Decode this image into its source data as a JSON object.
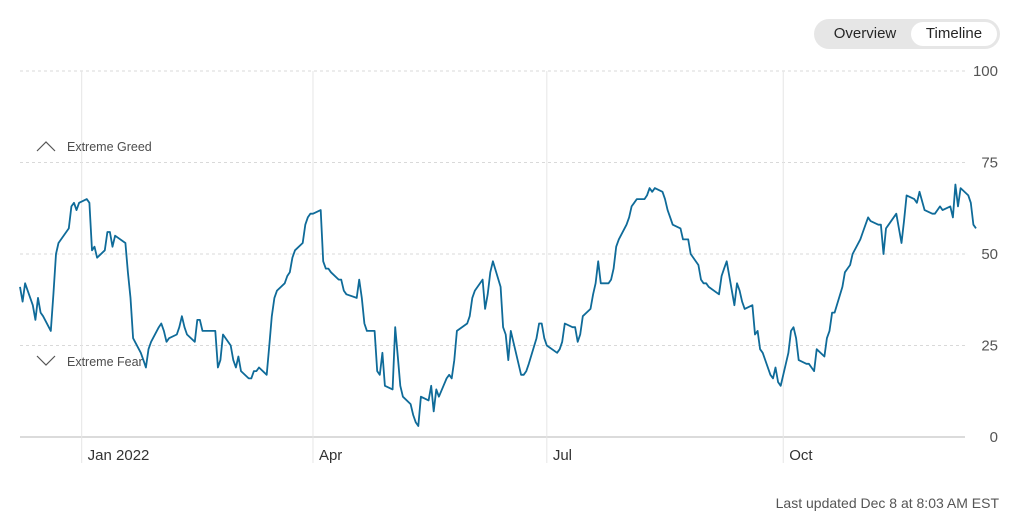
{
  "view_toggle": {
    "options": [
      {
        "label": "Overview",
        "selected": false
      },
      {
        "label": "Timeline",
        "selected": true
      }
    ]
  },
  "footer": {
    "last_updated": "Last updated Dec 8 at 8:03 AM EST"
  },
  "chart_data": {
    "type": "line",
    "title": "",
    "xlabel": "",
    "ylabel": "",
    "ylim": [
      0,
      100
    ],
    "yticks": [
      0,
      25,
      50,
      75,
      100
    ],
    "x_range": [
      "2021-12-08",
      "2022-12-08"
    ],
    "xticks": [
      {
        "label": "Jan 2022",
        "date": "2022-01-01"
      },
      {
        "label": "Apr",
        "date": "2022-04-01"
      },
      {
        "label": "Jul",
        "date": "2022-07-01"
      },
      {
        "label": "Oct",
        "date": "2022-10-01"
      }
    ],
    "annotations": [
      {
        "label": "Extreme Greed",
        "icon": "chevron-up-icon"
      },
      {
        "label": "Extreme Fear",
        "icon": "chevron-down-icon"
      }
    ],
    "grid": true,
    "line_color": "#0f6b99",
    "grid_color": "#d9d9d9",
    "series": [
      {
        "name": "",
        "points": [
          [
            "2021-12-08",
            41
          ],
          [
            "2021-12-09",
            37
          ],
          [
            "2021-12-10",
            42
          ],
          [
            "2021-12-13",
            36
          ],
          [
            "2021-12-14",
            32
          ],
          [
            "2021-12-15",
            38
          ],
          [
            "2021-12-16",
            34
          ],
          [
            "2021-12-17",
            33
          ],
          [
            "2021-12-20",
            29
          ],
          [
            "2021-12-21",
            39
          ],
          [
            "2021-12-22",
            50
          ],
          [
            "2021-12-23",
            53
          ],
          [
            "2021-12-27",
            57
          ],
          [
            "2021-12-28",
            63
          ],
          [
            "2021-12-29",
            64
          ],
          [
            "2021-12-30",
            62
          ],
          [
            "2021-12-31",
            64
          ],
          [
            "2022-01-03",
            65
          ],
          [
            "2022-01-04",
            64
          ],
          [
            "2022-01-05",
            51
          ],
          [
            "2022-01-06",
            52
          ],
          [
            "2022-01-07",
            49
          ],
          [
            "2022-01-10",
            51
          ],
          [
            "2022-01-11",
            56
          ],
          [
            "2022-01-12",
            56
          ],
          [
            "2022-01-13",
            52
          ],
          [
            "2022-01-14",
            55
          ],
          [
            "2022-01-18",
            53
          ],
          [
            "2022-01-19",
            45
          ],
          [
            "2022-01-20",
            38
          ],
          [
            "2022-01-21",
            27
          ],
          [
            "2022-01-24",
            23
          ],
          [
            "2022-01-25",
            21
          ],
          [
            "2022-01-26",
            19
          ],
          [
            "2022-01-27",
            24
          ],
          [
            "2022-01-28",
            26
          ],
          [
            "2022-01-31",
            30
          ],
          [
            "2022-02-01",
            31
          ],
          [
            "2022-02-02",
            29
          ],
          [
            "2022-02-03",
            26
          ],
          [
            "2022-02-04",
            27
          ],
          [
            "2022-02-07",
            28
          ],
          [
            "2022-02-08",
            30
          ],
          [
            "2022-02-09",
            33
          ],
          [
            "2022-02-10",
            30
          ],
          [
            "2022-02-11",
            28
          ],
          [
            "2022-02-14",
            26
          ],
          [
            "2022-02-15",
            32
          ],
          [
            "2022-02-16",
            32
          ],
          [
            "2022-02-17",
            29
          ],
          [
            "2022-02-18",
            29
          ],
          [
            "2022-02-22",
            29
          ],
          [
            "2022-02-23",
            19
          ],
          [
            "2022-02-24",
            21
          ],
          [
            "2022-02-25",
            28
          ],
          [
            "2022-02-28",
            25
          ],
          [
            "2022-03-01",
            21
          ],
          [
            "2022-03-02",
            19
          ],
          [
            "2022-03-03",
            22
          ],
          [
            "2022-03-04",
            18
          ],
          [
            "2022-03-07",
            16
          ],
          [
            "2022-03-08",
            16
          ],
          [
            "2022-03-09",
            18
          ],
          [
            "2022-03-10",
            18
          ],
          [
            "2022-03-11",
            19
          ],
          [
            "2022-03-14",
            17
          ],
          [
            "2022-03-15",
            25
          ],
          [
            "2022-03-16",
            33
          ],
          [
            "2022-03-17",
            38
          ],
          [
            "2022-03-18",
            40
          ],
          [
            "2022-03-21",
            42
          ],
          [
            "2022-03-22",
            44
          ],
          [
            "2022-03-23",
            45
          ],
          [
            "2022-03-24",
            49
          ],
          [
            "2022-03-25",
            51
          ],
          [
            "2022-03-28",
            53
          ],
          [
            "2022-03-29",
            58
          ],
          [
            "2022-03-30",
            60
          ],
          [
            "2022-03-31",
            61
          ],
          [
            "2022-04-01",
            61
          ],
          [
            "2022-04-04",
            62
          ],
          [
            "2022-04-05",
            48
          ],
          [
            "2022-04-06",
            46
          ],
          [
            "2022-04-07",
            46
          ],
          [
            "2022-04-08",
            45
          ],
          [
            "2022-04-11",
            43
          ],
          [
            "2022-04-12",
            43
          ],
          [
            "2022-04-13",
            40
          ],
          [
            "2022-04-14",
            39
          ],
          [
            "2022-04-18",
            38
          ],
          [
            "2022-04-19",
            43
          ],
          [
            "2022-04-20",
            38
          ],
          [
            "2022-04-21",
            31
          ],
          [
            "2022-04-22",
            29
          ],
          [
            "2022-04-25",
            29
          ],
          [
            "2022-04-26",
            18
          ],
          [
            "2022-04-27",
            17
          ],
          [
            "2022-04-28",
            23
          ],
          [
            "2022-04-29",
            14
          ],
          [
            "2022-05-02",
            13
          ],
          [
            "2022-05-03",
            30
          ],
          [
            "2022-05-04",
            22
          ],
          [
            "2022-05-05",
            14
          ],
          [
            "2022-05-06",
            11
          ],
          [
            "2022-05-09",
            9
          ],
          [
            "2022-05-10",
            6
          ],
          [
            "2022-05-11",
            4
          ],
          [
            "2022-05-12",
            3
          ],
          [
            "2022-05-13",
            11
          ],
          [
            "2022-05-16",
            10
          ],
          [
            "2022-05-17",
            14
          ],
          [
            "2022-05-18",
            7
          ],
          [
            "2022-05-19",
            13
          ],
          [
            "2022-05-20",
            11
          ],
          [
            "2022-05-23",
            16
          ],
          [
            "2022-05-24",
            17
          ],
          [
            "2022-05-25",
            16
          ],
          [
            "2022-05-26",
            21
          ],
          [
            "2022-05-27",
            29
          ],
          [
            "2022-05-31",
            31
          ],
          [
            "2022-06-01",
            33
          ],
          [
            "2022-06-02",
            38
          ],
          [
            "2022-06-03",
            40
          ],
          [
            "2022-06-06",
            43
          ],
          [
            "2022-06-07",
            35
          ],
          [
            "2022-06-08",
            39
          ],
          [
            "2022-06-09",
            45
          ],
          [
            "2022-06-10",
            48
          ],
          [
            "2022-06-13",
            41
          ],
          [
            "2022-06-14",
            30
          ],
          [
            "2022-06-15",
            28
          ],
          [
            "2022-06-16",
            21
          ],
          [
            "2022-06-17",
            29
          ],
          [
            "2022-06-21",
            17
          ],
          [
            "2022-06-22",
            17
          ],
          [
            "2022-06-23",
            18
          ],
          [
            "2022-06-24",
            20
          ],
          [
            "2022-06-27",
            27
          ],
          [
            "2022-06-28",
            31
          ],
          [
            "2022-06-29",
            31
          ],
          [
            "2022-06-30",
            27
          ],
          [
            "2022-07-01",
            25
          ],
          [
            "2022-07-05",
            23
          ],
          [
            "2022-07-06",
            24
          ],
          [
            "2022-07-07",
            26
          ],
          [
            "2022-07-08",
            31
          ],
          [
            "2022-07-11",
            30
          ],
          [
            "2022-07-12",
            30
          ],
          [
            "2022-07-13",
            26
          ],
          [
            "2022-07-14",
            28
          ],
          [
            "2022-07-15",
            33
          ],
          [
            "2022-07-18",
            35
          ],
          [
            "2022-07-19",
            39
          ],
          [
            "2022-07-20",
            42
          ],
          [
            "2022-07-21",
            48
          ],
          [
            "2022-07-22",
            42
          ],
          [
            "2022-07-25",
            42
          ],
          [
            "2022-07-26",
            43
          ],
          [
            "2022-07-27",
            46
          ],
          [
            "2022-07-28",
            52
          ],
          [
            "2022-07-29",
            54
          ],
          [
            "2022-08-01",
            58
          ],
          [
            "2022-08-02",
            60
          ],
          [
            "2022-08-03",
            63
          ],
          [
            "2022-08-04",
            64
          ],
          [
            "2022-08-05",
            65
          ],
          [
            "2022-08-08",
            65
          ],
          [
            "2022-08-09",
            66
          ],
          [
            "2022-08-10",
            68
          ],
          [
            "2022-08-11",
            67
          ],
          [
            "2022-08-12",
            68
          ],
          [
            "2022-08-15",
            67
          ],
          [
            "2022-08-16",
            65
          ],
          [
            "2022-08-17",
            62
          ],
          [
            "2022-08-18",
            60
          ],
          [
            "2022-08-19",
            58
          ],
          [
            "2022-08-22",
            57
          ],
          [
            "2022-08-23",
            54
          ],
          [
            "2022-08-24",
            54
          ],
          [
            "2022-08-25",
            54
          ],
          [
            "2022-08-26",
            50
          ],
          [
            "2022-08-29",
            47
          ],
          [
            "2022-08-30",
            43
          ],
          [
            "2022-08-31",
            42
          ],
          [
            "2022-09-01",
            42
          ],
          [
            "2022-09-02",
            41
          ],
          [
            "2022-09-06",
            39
          ],
          [
            "2022-09-07",
            44
          ],
          [
            "2022-09-08",
            46
          ],
          [
            "2022-09-09",
            48
          ],
          [
            "2022-09-12",
            36
          ],
          [
            "2022-09-13",
            42
          ],
          [
            "2022-09-14",
            40
          ],
          [
            "2022-09-15",
            37
          ],
          [
            "2022-09-16",
            35
          ],
          [
            "2022-09-19",
            36
          ],
          [
            "2022-09-20",
            28
          ],
          [
            "2022-09-21",
            29
          ],
          [
            "2022-09-22",
            24
          ],
          [
            "2022-09-23",
            23
          ],
          [
            "2022-09-26",
            17
          ],
          [
            "2022-09-27",
            16
          ],
          [
            "2022-09-28",
            19
          ],
          [
            "2022-09-29",
            15
          ],
          [
            "2022-09-30",
            14
          ],
          [
            "2022-10-03",
            23
          ],
          [
            "2022-10-04",
            29
          ],
          [
            "2022-10-05",
            30
          ],
          [
            "2022-10-06",
            27
          ],
          [
            "2022-10-07",
            21
          ],
          [
            "2022-10-10",
            20
          ],
          [
            "2022-10-11",
            20
          ],
          [
            "2022-10-12",
            19
          ],
          [
            "2022-10-13",
            18
          ],
          [
            "2022-10-14",
            24
          ],
          [
            "2022-10-17",
            22
          ],
          [
            "2022-10-18",
            27
          ],
          [
            "2022-10-19",
            29
          ],
          [
            "2022-10-20",
            34
          ],
          [
            "2022-10-21",
            34
          ],
          [
            "2022-10-24",
            41
          ],
          [
            "2022-10-25",
            45
          ],
          [
            "2022-10-26",
            46
          ],
          [
            "2022-10-27",
            47
          ],
          [
            "2022-10-28",
            50
          ],
          [
            "2022-10-31",
            54
          ],
          [
            "2022-11-01",
            56
          ],
          [
            "2022-11-02",
            58
          ],
          [
            "2022-11-03",
            60
          ],
          [
            "2022-11-04",
            59
          ],
          [
            "2022-11-07",
            58
          ],
          [
            "2022-11-08",
            58
          ],
          [
            "2022-11-09",
            50
          ],
          [
            "2022-11-10",
            57
          ],
          [
            "2022-11-11",
            58
          ],
          [
            "2022-11-14",
            61
          ],
          [
            "2022-11-15",
            57
          ],
          [
            "2022-11-16",
            53
          ],
          [
            "2022-11-17",
            59
          ],
          [
            "2022-11-18",
            66
          ],
          [
            "2022-11-21",
            65
          ],
          [
            "2022-11-22",
            64
          ],
          [
            "2022-11-23",
            67
          ],
          [
            "2022-11-25",
            62
          ],
          [
            "2022-11-28",
            61
          ],
          [
            "2022-11-29",
            61
          ],
          [
            "2022-11-30",
            62
          ],
          [
            "2022-12-01",
            63
          ],
          [
            "2022-12-02",
            62
          ],
          [
            "2022-12-05",
            63
          ],
          [
            "2022-12-06",
            60
          ],
          [
            "2022-12-07",
            69
          ],
          [
            "2022-12-08",
            63
          ],
          [
            "2022-12-09",
            68
          ],
          [
            "2022-12-12",
            66
          ],
          [
            "2022-12-13",
            64
          ],
          [
            "2022-12-14",
            58
          ],
          [
            "2022-12-15",
            57
          ]
        ]
      }
    ]
  }
}
